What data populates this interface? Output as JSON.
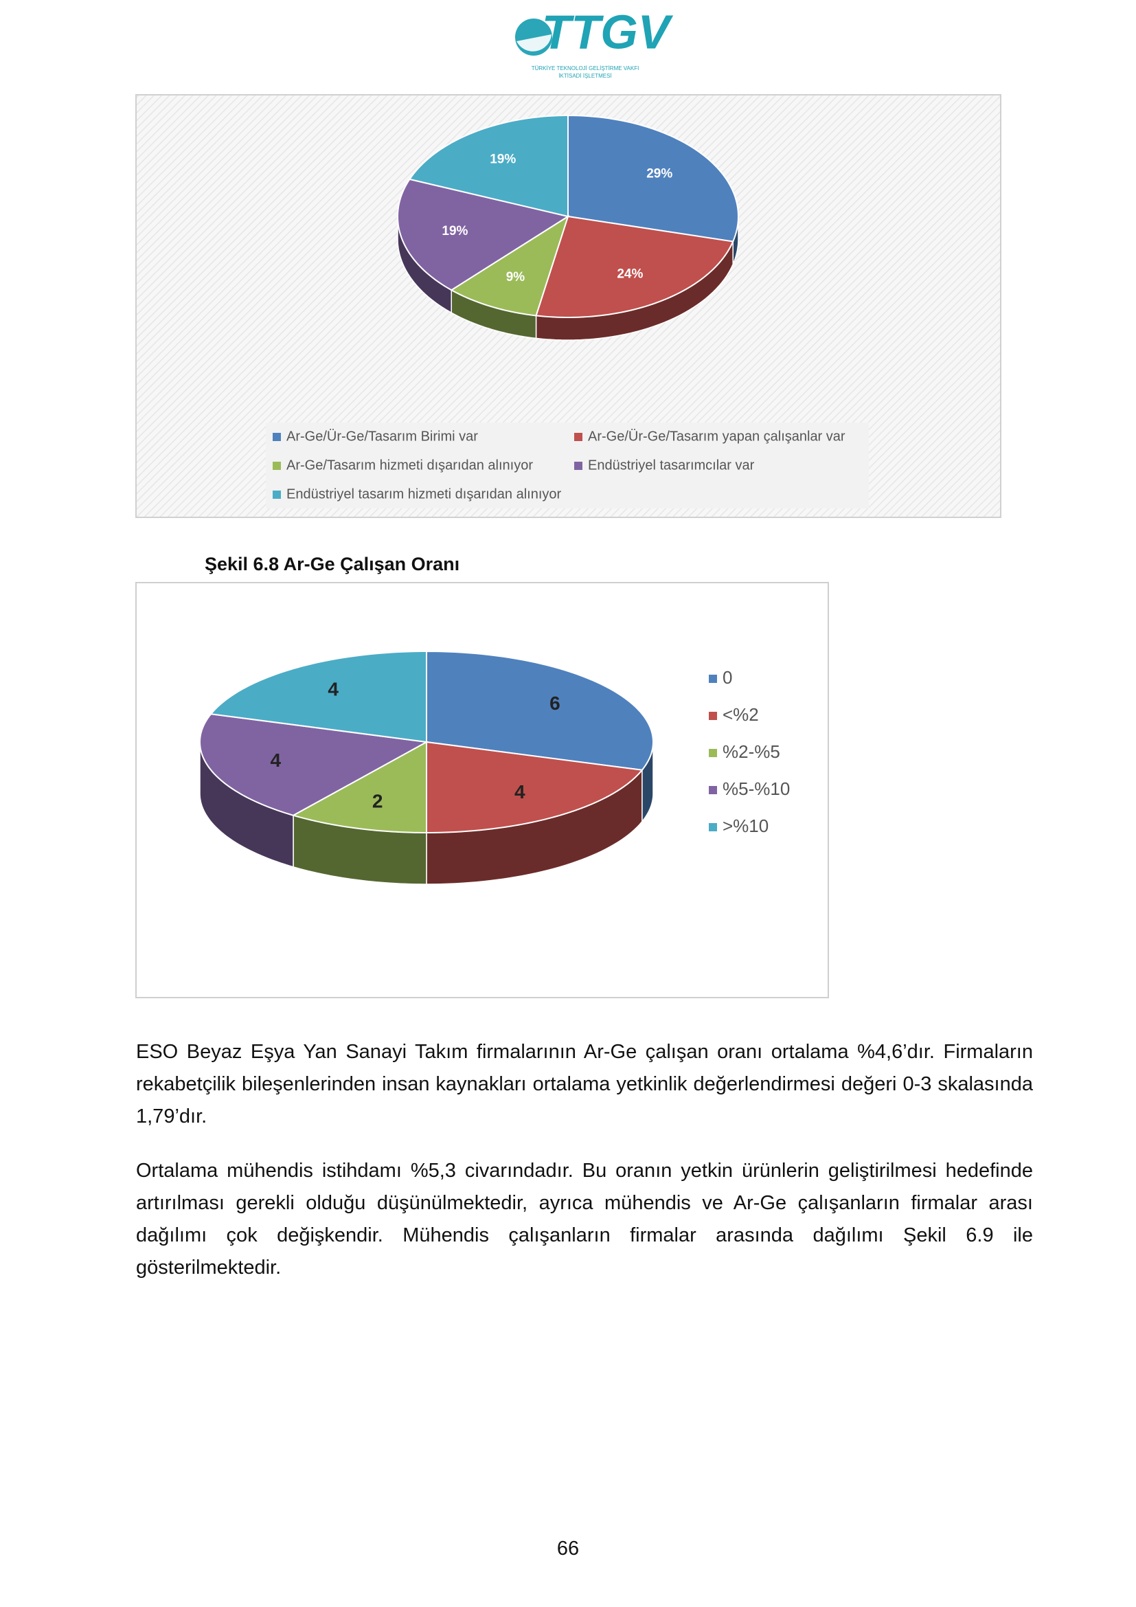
{
  "header": {
    "logo_text": "TTGV",
    "logo_line1": "TÜRKİYE TEKNOLOJİ GELİŞTİRME VAKFI",
    "logo_line2": "İKTİSADİ İŞLETMESİ"
  },
  "chart_data": [
    {
      "type": "pie",
      "categories": [
        "Ar-Ge/Ür-Ge/Tasarım Birimi var",
        "Ar-Ge/Ür-Ge/Tasarım yapan çalışanlar var",
        "Ar-Ge/Tasarım hizmeti dışarıdan alınıyor",
        "Endüstriyel tasarımcılar var",
        "Endüstriyel tasarım hizmeti dışarıdan alınıyor"
      ],
      "values": [
        29,
        24,
        9,
        19,
        19
      ],
      "value_labels": [
        "29%",
        "24%",
        "9%",
        "19%",
        "19%"
      ],
      "colors": [
        "#4f81bd",
        "#c0504d",
        "#9bbb59",
        "#8064a2",
        "#4bacc6"
      ],
      "legend": "bottom"
    },
    {
      "type": "pie",
      "categories": [
        "0",
        "<%2",
        "%2-%5",
        "%5-%10",
        ">%10"
      ],
      "values": [
        6,
        4,
        2,
        4,
        4
      ],
      "colors": [
        "#4f81bd",
        "#c0504d",
        "#9bbb59",
        "#8064a2",
        "#4bacc6"
      ],
      "legend": "right"
    }
  ],
  "caption": "Şekil 6.8 Ar-Ge Çalışan Oranı",
  "paragraphs": [
    "ESO Beyaz Eşya Yan Sanayi Takım firmalarının Ar-Ge çalışan oranı ortalama %4,6’dır. Firmaların rekabetçilik bileşenlerinden insan kaynakları ortalama yetkinlik değerlendirmesi değeri 0-3 skalasında 1,79’dır.",
    "Ortalama mühendis istihdamı %5,3 civarındadır. Bu oranın yetkin ürünlerin geliştirilmesi hedefinde artırılması gerekli olduğu düşünülmektedir, ayrıca mühendis ve Ar-Ge çalışanların firmalar arası dağılımı çok değişkendir. Mühendis çalışanların firmalar arasında dağılımı Şekil 6.9 ile gösterilmektedir."
  ],
  "page_number": "66"
}
